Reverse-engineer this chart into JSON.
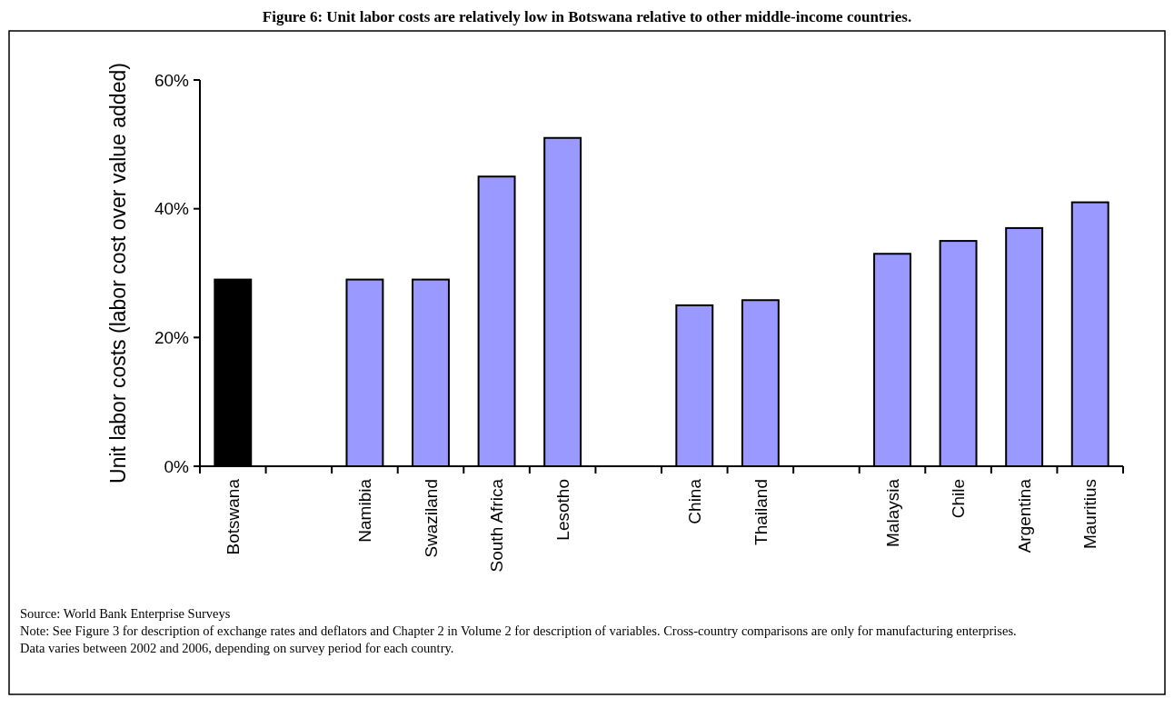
{
  "chart_data": {
    "type": "bar",
    "title": "Figure 6: Unit labor costs are relatively low in Botswana relative to other middle-income countries.",
    "ylabel": "Unit labor costs (labor cost over value added)",
    "categories": [
      "Botswana",
      null,
      "Namibia",
      "Swaziland",
      "South Africa",
      "Lesotho",
      null,
      "China",
      "Thailand",
      null,
      "Malaysia",
      "Chile",
      "Argentina",
      "Mauritius"
    ],
    "values": [
      29,
      null,
      29,
      29,
      45,
      51,
      null,
      25,
      25.8,
      null,
      33,
      35,
      37,
      41
    ],
    "colors": [
      "#000000",
      null,
      "#9999ff",
      "#9999ff",
      "#9999ff",
      "#9999ff",
      null,
      "#9999ff",
      "#9999ff",
      null,
      "#9999ff",
      "#9999ff",
      "#9999ff",
      "#9999ff"
    ],
    "ylim": [
      0,
      60
    ],
    "yticks": [
      {
        "value": 0,
        "label": "0%"
      },
      {
        "value": 20,
        "label": "20%"
      },
      {
        "value": 40,
        "label": "40%"
      },
      {
        "value": 60,
        "label": "60%"
      }
    ],
    "grid": false,
    "annotations": [
      "Source: World Bank Enterprise Surveys",
      "Note:  See Figure 3 for description of exchange rates and deflators and Chapter 2 in Volume 2 for description of variables.  Cross-country comparisons are only for manufacturing enterprises. Data varies between 2002 and 2006, depending on survey period for each country."
    ]
  }
}
